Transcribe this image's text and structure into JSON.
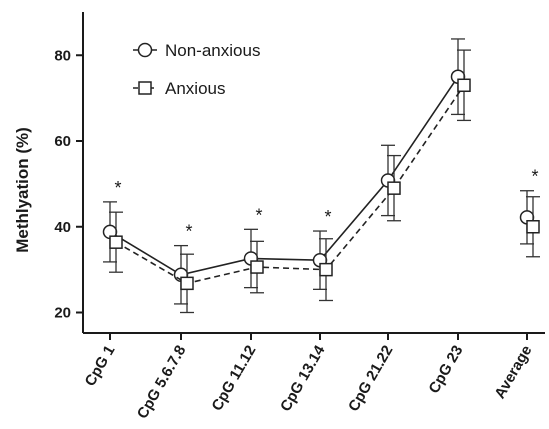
{
  "chart_data": {
    "type": "line",
    "ylabel": "Methlyation (%)",
    "ylim": [
      18,
      92
    ],
    "yticks": [
      20,
      40,
      60,
      80
    ],
    "categories": [
      "CpG 1",
      "CpG 5.6.7.8",
      "CpG 11.12",
      "CpG 13.14",
      "CpG 21.22",
      "CpG 23",
      "Average"
    ],
    "connected_categories": 6,
    "series": [
      {
        "name": "Non-anxious",
        "marker": "circle",
        "line_style": "solid",
        "values": [
          38.8,
          28.8,
          32.6,
          32.2,
          50.8,
          75.0,
          42.2
        ],
        "error": [
          7.0,
          6.8,
          6.8,
          6.8,
          8.2,
          8.8,
          6.2
        ]
      },
      {
        "name": "Anxious",
        "marker": "square",
        "line_style": "dashed",
        "values": [
          36.4,
          26.8,
          30.6,
          30.0,
          49.0,
          73.0,
          40.0
        ],
        "error": [
          7.0,
          6.8,
          6.0,
          7.2,
          7.6,
          8.2,
          7.0
        ]
      }
    ],
    "annotations": [
      {
        "category": "CpG 1",
        "text": "*"
      },
      {
        "category": "CpG 5.6.7.8",
        "text": "*"
      },
      {
        "category": "CpG 11.12",
        "text": "*"
      },
      {
        "category": "CpG 13.14",
        "text": "*"
      },
      {
        "category": "Average",
        "text": "*"
      }
    ],
    "legend": {
      "placement": "top-left"
    },
    "grid": false
  }
}
